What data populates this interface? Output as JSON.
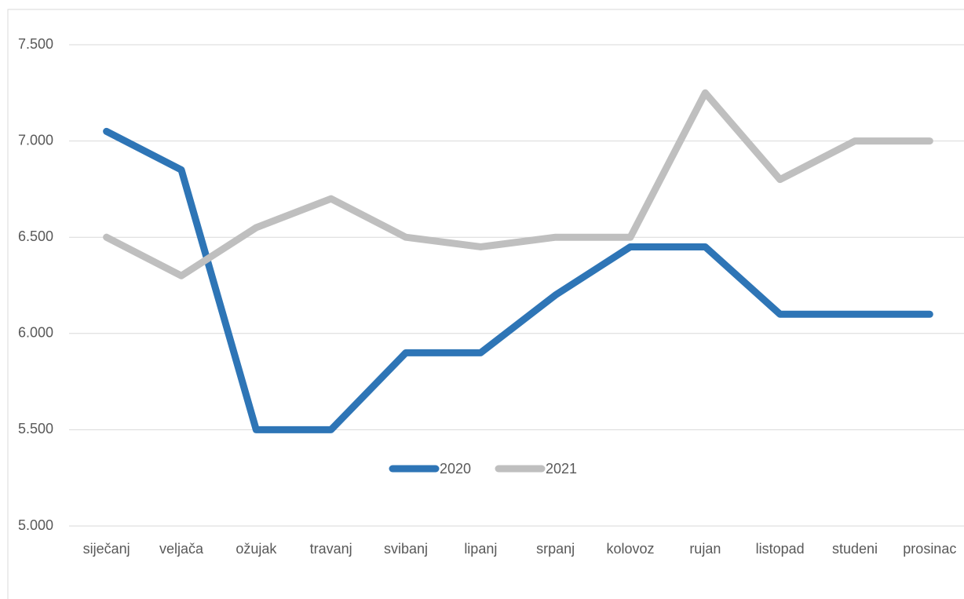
{
  "chart_data": {
    "type": "line",
    "categories": [
      "siječanj",
      "veljača",
      "ožujak",
      "travanj",
      "svibanj",
      "lipanj",
      "srpanj",
      "kolovoz",
      "rujan",
      "listopad",
      "studeni",
      "prosinac"
    ],
    "series": [
      {
        "name": "2020",
        "color": "#2e75b6",
        "values": [
          7050,
          6850,
          5500,
          5500,
          5900,
          5900,
          6200,
          6450,
          6450,
          6100,
          6100,
          6100
        ]
      },
      {
        "name": "2021",
        "color": "#bfbfbf",
        "values": [
          6500,
          6300,
          6550,
          6700,
          6500,
          6450,
          6500,
          6500,
          7250,
          6800,
          7000,
          7000
        ]
      }
    ],
    "ylim": [
      5000,
      7500
    ],
    "yticks": [
      {
        "value": 5000,
        "label": "5.000"
      },
      {
        "value": 5500,
        "label": "5.500"
      },
      {
        "value": 6000,
        "label": "6.000"
      },
      {
        "value": 6500,
        "label": "6.500"
      },
      {
        "value": 7000,
        "label": "7.000"
      },
      {
        "value": 7500,
        "label": "7.500"
      }
    ],
    "grid": true,
    "legend": "center"
  }
}
